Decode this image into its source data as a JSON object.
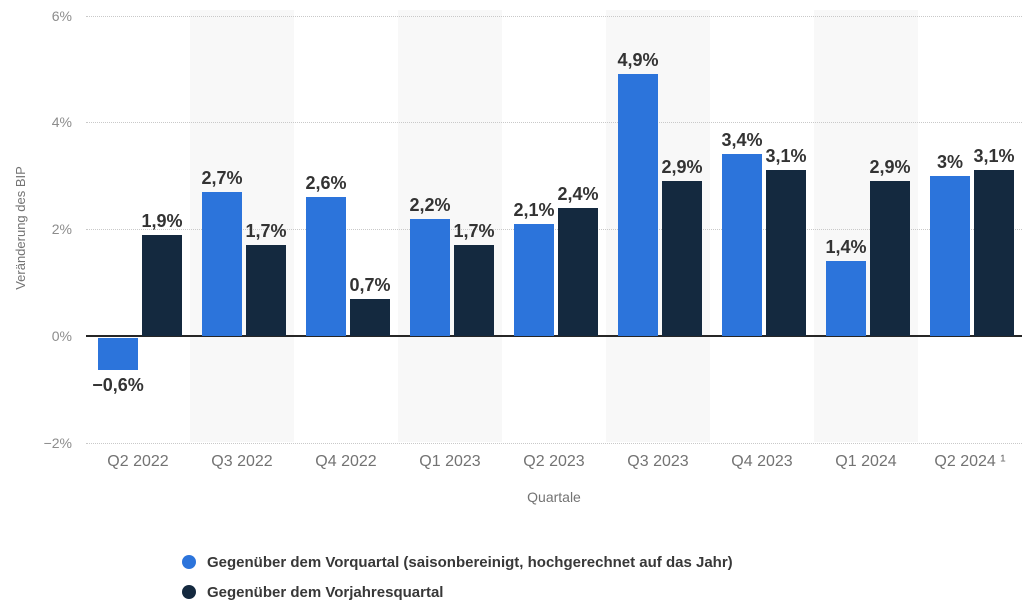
{
  "chart_data": {
    "type": "bar",
    "title": "",
    "xlabel": "Quartale",
    "ylabel": "Veränderung des BIP",
    "ylim": [
      -2,
      6
    ],
    "grid": true,
    "legend_position": "bottom",
    "background_band_color": "#f8f8f8",
    "categories": [
      "Q2 2022",
      "Q3 2022",
      "Q4 2022",
      "Q1 2023",
      "Q2 2023",
      "Q3 2023",
      "Q4 2023",
      "Q1 2024",
      "Q2 2024 ¹"
    ],
    "yticks": [
      {
        "value": 6,
        "label": "6%"
      },
      {
        "value": 4,
        "label": "4%"
      },
      {
        "value": 2,
        "label": "2%"
      },
      {
        "value": 0,
        "label": "0%"
      },
      {
        "value": -2,
        "label": "−2%"
      }
    ],
    "series": [
      {
        "name": "Gegenüber dem Vorquartal (saisonbereinigt, hochgerechnet auf das Jahr)",
        "color": "#2c74db",
        "values": [
          -0.6,
          2.7,
          2.6,
          2.2,
          2.1,
          4.9,
          3.4,
          1.4,
          3.0
        ],
        "labels": [
          "−0,6%",
          "2,7%",
          "2,6%",
          "2,2%",
          "2,1%",
          "4,9%",
          "3,4%",
          "1,4%",
          "3%"
        ]
      },
      {
        "name": "Gegenüber dem Vorjahresquartal",
        "color": "#14293f",
        "values": [
          1.9,
          1.7,
          0.7,
          1.7,
          2.4,
          2.9,
          3.1,
          2.9,
          3.1
        ],
        "labels": [
          "1,9%",
          "1,7%",
          "0,7%",
          "1,7%",
          "2,4%",
          "2,9%",
          "3,1%",
          "2,9%",
          "3,1%"
        ]
      }
    ]
  }
}
